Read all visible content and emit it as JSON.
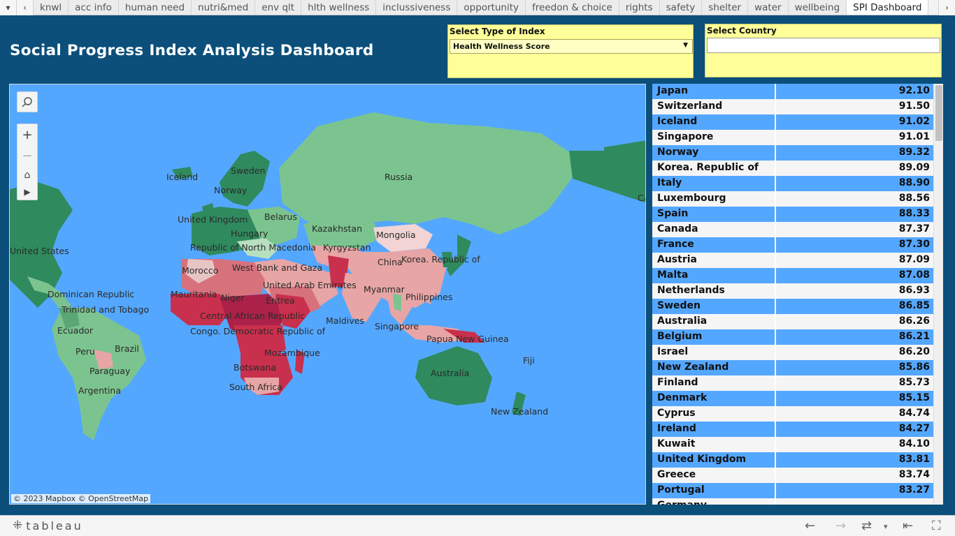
{
  "tabs": [
    "knwl",
    "acc info",
    "human need",
    "nutri&med",
    "env qlt",
    "hlth wellness",
    "inclussiveness",
    "opportunity",
    "freedon & choice",
    "rights",
    "safety",
    "shelter",
    "water",
    "wellbeing",
    "SPI Dashboard"
  ],
  "active_tab": "SPI Dashboard",
  "title": "Social Progress Index Analysis Dashboard",
  "index_filter": {
    "label": "Select Type of Index",
    "value": "Health Wellness Score"
  },
  "country_filter": {
    "label": "Select Country",
    "value": ""
  },
  "map": {
    "attribution": "© 2023 Mapbox  © OpenStreetMap",
    "labels": [
      "Russia",
      "Iceland",
      "Sweden",
      "Norway",
      "United Kingdom",
      "Belarus",
      "Hungary",
      "Kazakhstan",
      "Mongolia",
      "Republic of North Macedonia",
      "Kyrgyzstan",
      "United States",
      "Morocco",
      "West Bank and Gaza",
      "China",
      "Korea. Republic of",
      "United Arab Emirates",
      "Myanmar",
      "Dominican Republic",
      "Mauritania",
      "Niger",
      "Eritrea",
      "Philippines",
      "Trinidad and Tobago",
      "Central African Republic",
      "Maldives",
      "Ecuador",
      "Congo. Democratic Republic of",
      "Singapore",
      "Papua New Guinea",
      "Peru",
      "Brazil",
      "Mozambique",
      "Fiji",
      "Paraguay",
      "Botswana",
      "Australia",
      "Argentina",
      "South Africa",
      "New Zealand",
      "Ca"
    ]
  },
  "ranking": [
    {
      "country": "Japan",
      "score": "92.10"
    },
    {
      "country": "Switzerland",
      "score": "91.50"
    },
    {
      "country": "Iceland",
      "score": "91.02"
    },
    {
      "country": "Singapore",
      "score": "91.01"
    },
    {
      "country": "Norway",
      "score": "89.32"
    },
    {
      "country": "Korea. Republic of",
      "score": "89.09"
    },
    {
      "country": "Italy",
      "score": "88.90"
    },
    {
      "country": "Luxembourg",
      "score": "88.56"
    },
    {
      "country": "Spain",
      "score": "88.33"
    },
    {
      "country": "Canada",
      "score": "87.37"
    },
    {
      "country": "France",
      "score": "87.30"
    },
    {
      "country": "Austria",
      "score": "87.09"
    },
    {
      "country": "Malta",
      "score": "87.08"
    },
    {
      "country": "Netherlands",
      "score": "86.93"
    },
    {
      "country": "Sweden",
      "score": "86.85"
    },
    {
      "country": "Australia",
      "score": "86.26"
    },
    {
      "country": "Belgium",
      "score": "86.21"
    },
    {
      "country": "Israel",
      "score": "86.20"
    },
    {
      "country": "New Zealand",
      "score": "85.86"
    },
    {
      "country": "Finland",
      "score": "85.73"
    },
    {
      "country": "Denmark",
      "score": "85.15"
    },
    {
      "country": "Cyprus",
      "score": "84.74"
    },
    {
      "country": "Ireland",
      "score": "84.27"
    },
    {
      "country": "Kuwait",
      "score": "84.10"
    },
    {
      "country": "United Kingdom",
      "score": "83.81"
    },
    {
      "country": "Greece",
      "score": "83.74"
    },
    {
      "country": "Portugal",
      "score": "83.27"
    },
    {
      "country": "Germany",
      "score": ""
    }
  ],
  "footer": {
    "brand": "tableau"
  },
  "colors": {
    "background": "#0b4f7a",
    "ocean": "#54a7ff",
    "high": "#2f8a5e",
    "mid_high": "#7cc48f",
    "mid_low": "#e8a5a5",
    "low": "#c9304d",
    "filter": "#ffff99"
  },
  "icons": [
    "chevron-left-icon",
    "chevron-right-icon",
    "dropdown-icon",
    "search-icon",
    "zoom-in-icon",
    "zoom-out-icon",
    "home-icon",
    "play-icon",
    "tableau-logo-icon",
    "undo-icon",
    "redo-icon",
    "revert-icon",
    "reset-icon",
    "fullscreen-icon"
  ]
}
